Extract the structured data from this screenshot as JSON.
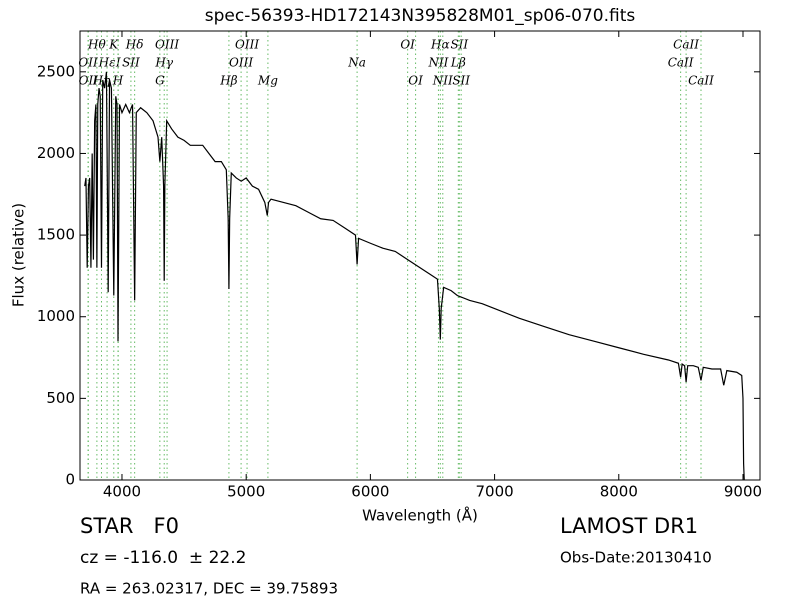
{
  "chart_data": {
    "type": "line",
    "title": "spec-56393-HD172143N395828M01_sp06-070.fits",
    "x_label": "Wavelength (Å)",
    "y_label": "Flux (relative)",
    "xlim": [
      3662,
      9137
    ],
    "ylim": [
      0,
      2750
    ],
    "xticks": [
      4000,
      5000,
      6000,
      7000,
      8000,
      9000
    ],
    "yticks": [
      0,
      500,
      1000,
      1500,
      2000,
      2500
    ],
    "color": "#000000",
    "line_color": "#66bb66",
    "x": [
      3700,
      3710,
      3720,
      3730,
      3740,
      3750,
      3760,
      3770,
      3780,
      3790,
      3798,
      3805,
      3815,
      3825,
      3835,
      3845,
      3860,
      3875,
      3889,
      3900,
      3915,
      3934,
      3950,
      3960,
      3968,
      3980,
      4000,
      4030,
      4060,
      4085,
      4102,
      4115,
      4150,
      4200,
      4250,
      4290,
      4305,
      4320,
      4335,
      4340,
      4345,
      4360,
      4400,
      4450,
      4500,
      4550,
      4600,
      4650,
      4700,
      4750,
      4800,
      4840,
      4855,
      4861,
      4867,
      4880,
      4920,
      4960,
      5000,
      5050,
      5100,
      5150,
      5170,
      5180,
      5200,
      5250,
      5300,
      5400,
      5500,
      5600,
      5700,
      5800,
      5880,
      5893,
      5905,
      6000,
      6100,
      6200,
      6300,
      6400,
      6500,
      6540,
      6555,
      6563,
      6570,
      6590,
      6650,
      6700,
      6800,
      6900,
      7000,
      7200,
      7400,
      7600,
      7800,
      8000,
      8200,
      8400,
      8480,
      8498,
      8510,
      8530,
      8542,
      8555,
      8600,
      8640,
      8662,
      8680,
      8750,
      8820,
      8845,
      8870,
      8950,
      8990,
      9000,
      9005,
      9010
    ],
    "y": [
      1800,
      1850,
      1300,
      1800,
      1850,
      1300,
      2000,
      1350,
      2200,
      2300,
      1300,
      2300,
      2400,
      2350,
      1300,
      2450,
      2400,
      2500,
      1150,
      2450,
      2400,
      1130,
      2350,
      2300,
      850,
      2300,
      2250,
      2300,
      2250,
      2300,
      1100,
      2250,
      2280,
      2250,
      2200,
      2100,
      1950,
      2100,
      1800,
      1220,
      1800,
      2200,
      2150,
      2100,
      2080,
      2050,
      2050,
      2050,
      2000,
      1950,
      1950,
      1900,
      1600,
      1170,
      1600,
      1880,
      1850,
      1830,
      1850,
      1800,
      1780,
      1700,
      1620,
      1700,
      1720,
      1710,
      1700,
      1680,
      1640,
      1600,
      1590,
      1540,
      1500,
      1320,
      1480,
      1450,
      1420,
      1400,
      1350,
      1300,
      1250,
      1230,
      1050,
      860,
      1050,
      1180,
      1160,
      1130,
      1100,
      1080,
      1050,
      990,
      940,
      890,
      850,
      810,
      770,
      735,
      715,
      630,
      710,
      700,
      600,
      700,
      700,
      690,
      610,
      690,
      680,
      680,
      580,
      670,
      660,
      640,
      500,
      100,
      0
    ],
    "line_rows": [
      [
        {
          "label": "Hθ",
          "wavelength": 3798
        },
        {
          "label": "K",
          "wavelength": 3934
        },
        {
          "label": "Hδ",
          "wavelength": 4102
        },
        {
          "label": "OIII",
          "wavelength": 4363
        },
        {
          "label": "OIII",
          "wavelength": 5007
        },
        {
          "label": "OI",
          "wavelength": 6300
        },
        {
          "label": "Hα",
          "wavelength": 6563
        },
        {
          "label": "SII",
          "wavelength": 6716
        },
        {
          "label": "CaII",
          "wavelength": 8542
        }
      ],
      [
        {
          "label": "OII",
          "wavelength": 3727
        },
        {
          "label": "Hε",
          "wavelength": 3880
        },
        {
          "label": "I",
          "wavelength": 3970
        },
        {
          "label": "SII",
          "wavelength": 4072
        },
        {
          "label": "Hγ",
          "wavelength": 4340
        },
        {
          "label": "OIII",
          "wavelength": 4959
        },
        {
          "label": "Na",
          "wavelength": 5893
        },
        {
          "label": "NII",
          "wavelength": 6548
        },
        {
          "label": "Lβ",
          "wavelength": 6708
        },
        {
          "label": "CaII",
          "wavelength": 8498
        }
      ],
      [
        {
          "label": "OII",
          "wavelength": 3729
        },
        {
          "label": "Hη",
          "wavelength": 3835
        },
        {
          "label": "H",
          "wavelength": 3968
        },
        {
          "label": "G",
          "wavelength": 4305
        },
        {
          "label": "Hβ",
          "wavelength": 4861
        },
        {
          "label": "Mg",
          "wavelength": 5175
        },
        {
          "label": "OI",
          "wavelength": 6364
        },
        {
          "label": "NII",
          "wavelength": 6583
        },
        {
          "label": "SII",
          "wavelength": 6731
        },
        {
          "label": "CaII",
          "wavelength": 8662
        }
      ]
    ]
  },
  "footer": {
    "class": "STAR   F0",
    "survey": "LAMOST DR1",
    "cz": "cz = -116.0  ± 22.2",
    "obs_date": "Obs-Date:20130410",
    "coords": "RA = 263.02317, DEC = 39.75893"
  }
}
